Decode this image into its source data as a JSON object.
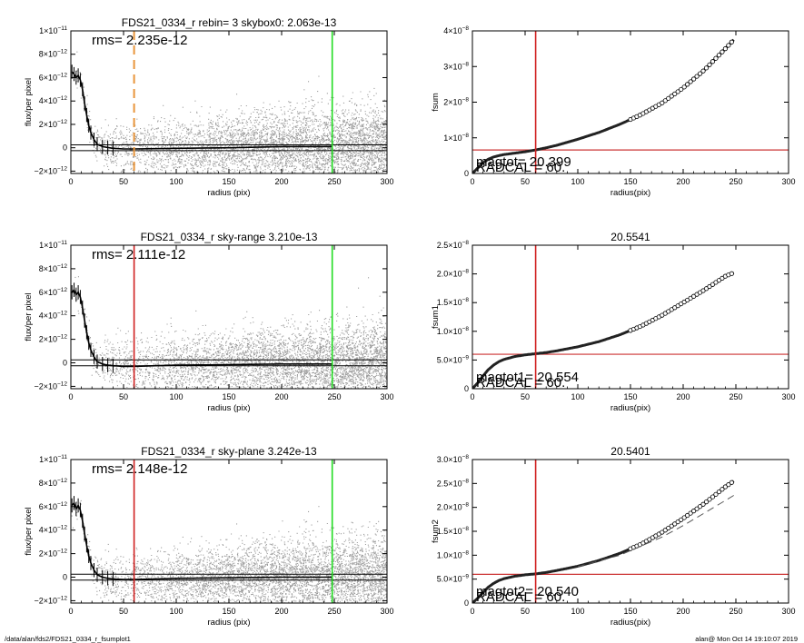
{
  "colors": {
    "points": "#8c8c8c",
    "profile": "#000000",
    "cursor_red": "#d02020",
    "cursor_green": "#22dd22",
    "cursor_orange": "#e8963c",
    "hline_red": "#cc3333"
  },
  "footer": {
    "left": "/data/alan/fds2/FDS21_0334_r_fsumplot1",
    "right": "alan@  Mon Oct 14 19:10:07 2019"
  },
  "chart_data": [
    {
      "id": "p1",
      "type": "scatter",
      "title": "FDS21_0334_r rebin= 3    skybox0:  2.063e-13",
      "xlabel": "radius (pix)",
      "ylabel": "flux/per pixel",
      "xlim": [
        0,
        300
      ],
      "ylim": [
        -2.2e-12,
        1e-11
      ],
      "xticks": [
        0,
        50,
        100,
        150,
        200,
        250,
        300
      ],
      "yticks": [
        {
          "v": -2e-12,
          "m": "−2×10",
          "e": "−12"
        },
        {
          "v": 0,
          "m": "0",
          "e": ""
        },
        {
          "v": 2e-12,
          "m": "2×10",
          "e": "−12"
        },
        {
          "v": 4e-12,
          "m": "4×10",
          "e": "−12"
        },
        {
          "v": 6e-12,
          "m": "6×10",
          "e": "−12"
        },
        {
          "v": 8e-12,
          "m": "8×10",
          "e": "−12"
        },
        {
          "v": 1e-11,
          "m": "1×10",
          "e": "−11"
        }
      ],
      "annotations": [
        "rms= 2.235e-12"
      ],
      "vlines": [
        {
          "x": 60,
          "color": "orange",
          "dashed": true
        },
        {
          "x": 248,
          "color": "green"
        }
      ],
      "hlines": [
        {
          "y": 2.5e-13
        },
        {
          "y": -2.5e-13
        }
      ],
      "profile": {
        "x": [
          1,
          3,
          5,
          7,
          9,
          11,
          13,
          15,
          17,
          19,
          22,
          25,
          30,
          35,
          40,
          50,
          60,
          80,
          100,
          150,
          200,
          248
        ],
        "y": [
          6.5e-12,
          6.3e-12,
          6e-12,
          6.2e-12,
          5.8e-12,
          5e-12,
          3.8e-12,
          2.8e-12,
          1.9e-12,
          1.3e-12,
          7e-13,
          3e-13,
          1e-13,
          2e-14,
          -5e-14,
          -1e-13,
          -1e-13,
          -8e-14,
          -5e-14,
          0,
          1e-13,
          1e-13
        ]
      }
    },
    {
      "id": "p2",
      "type": "scatter",
      "title": "",
      "xlabel": "radius(pix)",
      "ylabel": "fsum",
      "xlim": [
        0,
        300
      ],
      "ylim": [
        0,
        4e-08
      ],
      "xticks": [
        0,
        50,
        100,
        150,
        200,
        250,
        300
      ],
      "yticks": [
        {
          "v": 0,
          "m": "0",
          "e": ""
        },
        {
          "v": 1e-08,
          "m": "1×10",
          "e": "−8"
        },
        {
          "v": 2e-08,
          "m": "2×10",
          "e": "−8"
        },
        {
          "v": 3e-08,
          "m": "3×10",
          "e": "−8"
        },
        {
          "v": 4e-08,
          "m": "4×10",
          "e": "−8"
        }
      ],
      "annotations": [
        "magtot= 20.399",
        "RADCAL =   60."
      ],
      "vlines": [
        {
          "x": 60,
          "color": "red"
        }
      ],
      "hlines": [
        {
          "y": 6.6e-09,
          "color": "red"
        }
      ],
      "curve": {
        "x": [
          0,
          5,
          10,
          15,
          20,
          25,
          30,
          40,
          50,
          60,
          70,
          80,
          100,
          120,
          140,
          160,
          180,
          200,
          220,
          240,
          248
        ],
        "y": [
          0,
          1.5e-09,
          3e-09,
          4e-09,
          4.6e-09,
          5e-09,
          5.3e-09,
          5.7e-09,
          6.1e-09,
          6.6e-09,
          7.2e-09,
          7.9e-09,
          9.6e-09,
          1.15e-08,
          1.38e-08,
          1.65e-08,
          1.98e-08,
          2.4e-08,
          2.9e-08,
          3.5e-08,
          3.75e-08
        ]
      }
    },
    {
      "id": "p3",
      "type": "scatter",
      "title": "FDS21_0334_r sky-range  3.210e-13",
      "xlabel": "radius (pix)",
      "ylabel": "flux/per pixel",
      "xlim": [
        0,
        300
      ],
      "ylim": [
        -2.2e-12,
        1e-11
      ],
      "xticks": [
        0,
        50,
        100,
        150,
        200,
        250,
        300
      ],
      "yticks": [
        {
          "v": -2e-12,
          "m": "−2×10",
          "e": "−12"
        },
        {
          "v": 0,
          "m": "0",
          "e": ""
        },
        {
          "v": 2e-12,
          "m": "2×10",
          "e": "−12"
        },
        {
          "v": 4e-12,
          "m": "4×10",
          "e": "−12"
        },
        {
          "v": 6e-12,
          "m": "6×10",
          "e": "−12"
        },
        {
          "v": 8e-12,
          "m": "8×10",
          "e": "−12"
        },
        {
          "v": 1e-11,
          "m": "1×10",
          "e": "−11"
        }
      ],
      "annotations": [
        "rms= 2.111e-12"
      ],
      "vlines": [
        {
          "x": 60,
          "color": "red"
        },
        {
          "x": 248,
          "color": "green"
        }
      ],
      "hlines": [
        {
          "y": 2.5e-13
        },
        {
          "y": -2.5e-13
        }
      ],
      "profile": {
        "x": [
          1,
          3,
          5,
          7,
          9,
          11,
          13,
          15,
          17,
          19,
          22,
          25,
          30,
          35,
          40,
          50,
          60,
          80,
          100,
          150,
          200,
          248
        ],
        "y": [
          6e-12,
          6.2e-12,
          5.8e-12,
          6e-12,
          5.6e-12,
          4.7e-12,
          3.6e-12,
          2.6e-12,
          1.7e-12,
          1.1e-12,
          5e-13,
          1e-13,
          -1e-13,
          -2e-13,
          -2.5e-13,
          -3e-13,
          -3e-13,
          -2.5e-13,
          -2e-13,
          -1.5e-13,
          -1e-13,
          -1e-13
        ]
      }
    },
    {
      "id": "p4",
      "type": "scatter",
      "title": "20.5541",
      "xlabel": "radius(pix)",
      "ylabel": "fsum1",
      "xlim": [
        0,
        300
      ],
      "ylim": [
        0,
        2.5e-08
      ],
      "xticks": [
        0,
        50,
        100,
        150,
        200,
        250,
        300
      ],
      "yticks": [
        {
          "v": 0,
          "m": "0",
          "e": ""
        },
        {
          "v": 5e-09,
          "m": "5.0×10",
          "e": "−9"
        },
        {
          "v": 1e-08,
          "m": "1.0×10",
          "e": "−8"
        },
        {
          "v": 1.5e-08,
          "m": "1.5×10",
          "e": "−8"
        },
        {
          "v": 2e-08,
          "m": "2.0×10",
          "e": "−8"
        },
        {
          "v": 2.5e-08,
          "m": "2.5×10",
          "e": "−8"
        }
      ],
      "annotations": [
        "magtot1= 20.554",
        "RADCAL =   60."
      ],
      "vlines": [
        {
          "x": 60,
          "color": "red"
        }
      ],
      "hlines": [
        {
          "y": 6e-09,
          "color": "red"
        }
      ],
      "curve": {
        "x": [
          0,
          5,
          10,
          15,
          20,
          25,
          30,
          40,
          50,
          60,
          70,
          80,
          100,
          120,
          140,
          160,
          180,
          200,
          220,
          240,
          248
        ],
        "y": [
          0,
          1e-09,
          2.2e-09,
          3.3e-09,
          4.1e-09,
          4.7e-09,
          5.1e-09,
          5.6e-09,
          5.9e-09,
          6.1e-09,
          6.3e-09,
          6.6e-09,
          7.3e-09,
          8.2e-09,
          9.4e-09,
          1.09e-08,
          1.28e-08,
          1.5e-08,
          1.72e-08,
          1.96e-08,
          2.02e-08
        ]
      }
    },
    {
      "id": "p5",
      "type": "scatter",
      "title": "FDS21_0334_r sky-plane  3.242e-13",
      "xlabel": "radius (pix)",
      "ylabel": "flux/per pixel",
      "xlim": [
        0,
        300
      ],
      "ylim": [
        -2.2e-12,
        1e-11
      ],
      "xticks": [
        0,
        50,
        100,
        150,
        200,
        250,
        300
      ],
      "yticks": [
        {
          "v": -2e-12,
          "m": "−2×10",
          "e": "−12"
        },
        {
          "v": 0,
          "m": "0",
          "e": ""
        },
        {
          "v": 2e-12,
          "m": "2×10",
          "e": "−12"
        },
        {
          "v": 4e-12,
          "m": "4×10",
          "e": "−12"
        },
        {
          "v": 6e-12,
          "m": "6×10",
          "e": "−12"
        },
        {
          "v": 8e-12,
          "m": "8×10",
          "e": "−12"
        },
        {
          "v": 1e-11,
          "m": "1×10",
          "e": "−11"
        }
      ],
      "annotations": [
        "rms= 2.148e-12"
      ],
      "vlines": [
        {
          "x": 60,
          "color": "red"
        },
        {
          "x": 248,
          "color": "green"
        }
      ],
      "hlines": [
        {
          "y": 2.5e-13
        },
        {
          "y": -2.5e-13
        }
      ],
      "profile": {
        "x": [
          1,
          3,
          5,
          7,
          9,
          11,
          13,
          15,
          17,
          19,
          22,
          25,
          30,
          35,
          40,
          50,
          60,
          80,
          100,
          150,
          200,
          248
        ],
        "y": [
          6.1e-12,
          6.3e-12,
          5.8e-12,
          6.1e-12,
          5.7e-12,
          4.8e-12,
          3.7e-12,
          2.7e-12,
          1.8e-12,
          1.2e-12,
          6e-13,
          2e-13,
          0,
          -1e-13,
          -1.5e-13,
          -2e-13,
          -2e-13,
          -1.5e-13,
          -1e-13,
          -5e-14,
          0,
          0
        ]
      }
    },
    {
      "id": "p6",
      "type": "scatter",
      "title": "20.5401",
      "xlabel": "radius(pix)",
      "ylabel": "fsum2",
      "xlim": [
        0,
        300
      ],
      "ylim": [
        0,
        3e-08
      ],
      "xticks": [
        0,
        50,
        100,
        150,
        200,
        250,
        300
      ],
      "yticks": [
        {
          "v": 0,
          "m": "0",
          "e": ""
        },
        {
          "v": 5e-09,
          "m": "5.0×10",
          "e": "−9"
        },
        {
          "v": 1e-08,
          "m": "1.0×10",
          "e": "−8"
        },
        {
          "v": 1.5e-08,
          "m": "1.5×10",
          "e": "−8"
        },
        {
          "v": 2e-08,
          "m": "2.0×10",
          "e": "−8"
        },
        {
          "v": 2.5e-08,
          "m": "2.5×10",
          "e": "−8"
        },
        {
          "v": 3e-08,
          "m": "3.0×10",
          "e": "−8"
        }
      ],
      "annotations": [
        "magtot2= 20.540",
        "RADCAL =   60."
      ],
      "vlines": [
        {
          "x": 60,
          "color": "red"
        }
      ],
      "hlines": [
        {
          "y": 6e-09,
          "color": "red"
        }
      ],
      "curve": {
        "x": [
          0,
          5,
          10,
          15,
          20,
          25,
          30,
          40,
          50,
          60,
          70,
          80,
          100,
          120,
          140,
          160,
          180,
          200,
          220,
          240,
          248
        ],
        "y": [
          0,
          1e-09,
          2.2e-09,
          3.3e-09,
          4.1e-09,
          4.7e-09,
          5.1e-09,
          5.6e-09,
          5.9e-09,
          6.1e-09,
          6.4e-09,
          6.8e-09,
          7.7e-09,
          8.9e-09,
          1.04e-08,
          1.23e-08,
          1.48e-08,
          1.77e-08,
          2.08e-08,
          2.43e-08,
          2.55e-08
        ]
      },
      "dashed_curve": {
        "x": [
          100,
          140,
          180,
          200,
          220,
          248
        ],
        "y": [
          7.6e-09,
          1e-08,
          1.38e-08,
          1.62e-08,
          1.88e-08,
          2.25e-08
        ]
      }
    }
  ]
}
